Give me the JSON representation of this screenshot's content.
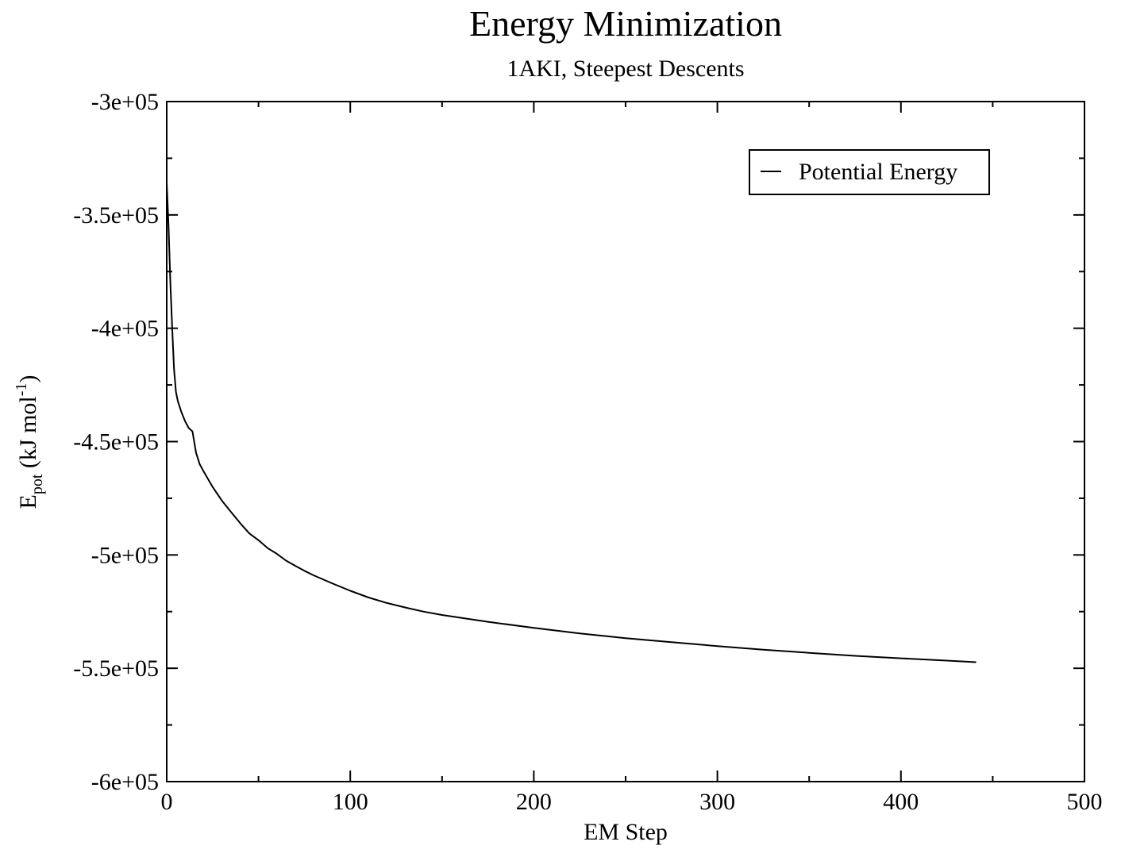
{
  "chart_data": {
    "type": "line",
    "title": "Energy Minimization",
    "subtitle": "1AKI, Steepest Descents",
    "xlabel": "EM Step",
    "ylabel": {
      "main": "E",
      "sub": "pot",
      "unit_pre": " (kJ mol",
      "unit_sup": "-1",
      "unit_post": ")"
    },
    "xlim": [
      0,
      500
    ],
    "ylim": [
      -600000,
      -300000
    ],
    "xticks": [
      0,
      100,
      200,
      300,
      400,
      500
    ],
    "xtick_labels": [
      "0",
      "100",
      "200",
      "300",
      "400",
      "500"
    ],
    "yticks": [
      -600000,
      -550000,
      -500000,
      -450000,
      -400000,
      -350000,
      -300000
    ],
    "ytick_labels": [
      "-6e+05",
      "-5.5e+05",
      "-5e+05",
      "-4.5e+05",
      "-4e+05",
      "-3.5e+05",
      "-3e+05"
    ],
    "grid": false,
    "legend": {
      "position": "top-right",
      "entries": [
        "Potential Energy"
      ]
    },
    "series": [
      {
        "name": "Potential Energy",
        "color": "#000000",
        "x": [
          0,
          1,
          2,
          3,
          4,
          5,
          6,
          8,
          10,
          12,
          14,
          16,
          18,
          20,
          25,
          30,
          35,
          40,
          45,
          50,
          55,
          60,
          65,
          70,
          75,
          80,
          90,
          100,
          110,
          120,
          130,
          140,
          150,
          175,
          200,
          225,
          250,
          275,
          300,
          325,
          350,
          375,
          400,
          425,
          441
        ],
        "y": [
          -336000,
          -355000,
          -380000,
          -400000,
          -418000,
          -428000,
          -432000,
          -437000,
          -441000,
          -444000,
          -445500,
          -455000,
          -460000,
          -463000,
          -470000,
          -476000,
          -481000,
          -486000,
          -490500,
          -493500,
          -497000,
          -499500,
          -502500,
          -504800,
          -507000,
          -509000,
          -512500,
          -515800,
          -518800,
          -521200,
          -523200,
          -525000,
          -526500,
          -529500,
          -532200,
          -534600,
          -536700,
          -538500,
          -540200,
          -541800,
          -543200,
          -544500,
          -545600,
          -546600,
          -547300
        ]
      }
    ]
  }
}
